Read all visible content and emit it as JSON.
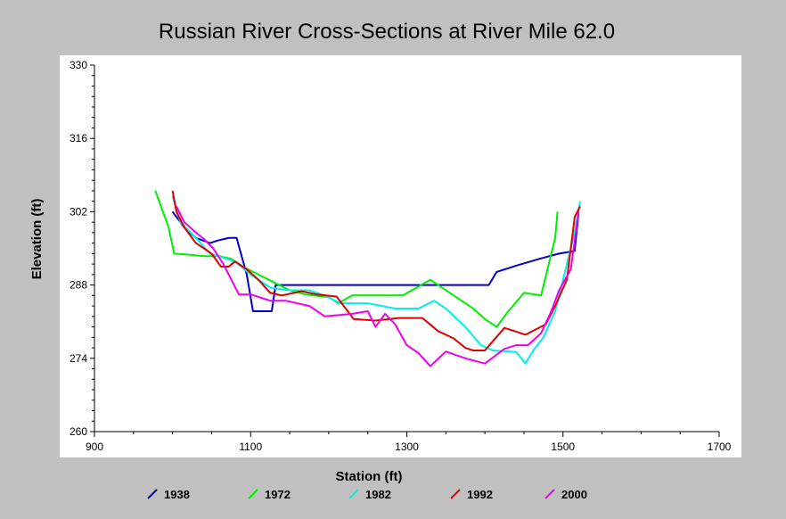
{
  "chart_data": {
    "type": "line",
    "title": "Russian River Cross-Sections at River Mile 62.0",
    "xlabel": "Station (ft)",
    "ylabel": "Elevation (ft)",
    "xlim": [
      900,
      1700
    ],
    "ylim": [
      260,
      330
    ],
    "x_ticks": [
      900,
      1100,
      1300,
      1500,
      1700
    ],
    "y_ticks": [
      260,
      274,
      288,
      302,
      316,
      330
    ],
    "grid": false,
    "legend_position": "bottom",
    "series": [
      {
        "name": "1938",
        "color": "#0000cc",
        "points": [
          [
            1000,
            302
          ],
          [
            1015,
            299
          ],
          [
            1030,
            297
          ],
          [
            1048,
            296
          ],
          [
            1058,
            296.5
          ],
          [
            1072,
            297
          ],
          [
            1082,
            297
          ],
          [
            1095,
            290
          ],
          [
            1103,
            283
          ],
          [
            1127,
            283
          ],
          [
            1132,
            288
          ],
          [
            1405,
            288
          ],
          [
            1415,
            290.5
          ],
          [
            1440,
            291.7
          ],
          [
            1470,
            293
          ],
          [
            1495,
            294
          ],
          [
            1515,
            294.5
          ],
          [
            1520,
            302
          ]
        ]
      },
      {
        "name": "1972",
        "color": "#00ee00",
        "points": [
          [
            978,
            306
          ],
          [
            995,
            299
          ],
          [
            1002,
            294
          ],
          [
            1020,
            293.8
          ],
          [
            1040,
            293.5
          ],
          [
            1060,
            293.5
          ],
          [
            1075,
            293
          ],
          [
            1090,
            291.5
          ],
          [
            1110,
            290
          ],
          [
            1130,
            288.5
          ],
          [
            1150,
            287
          ],
          [
            1170,
            286.2
          ],
          [
            1200,
            285.7
          ],
          [
            1212,
            284.5
          ],
          [
            1230,
            286
          ],
          [
            1280,
            286
          ],
          [
            1295,
            286
          ],
          [
            1330,
            289
          ],
          [
            1360,
            286
          ],
          [
            1385,
            283.5
          ],
          [
            1400,
            281.5
          ],
          [
            1415,
            280
          ],
          [
            1430,
            283
          ],
          [
            1450,
            286.5
          ],
          [
            1472,
            286
          ],
          [
            1490,
            297
          ],
          [
            1493,
            302
          ]
        ]
      },
      {
        "name": "1982",
        "color": "#00eeee",
        "points": [
          [
            1000,
            305
          ],
          [
            1010,
            300
          ],
          [
            1030,
            297
          ],
          [
            1048,
            294
          ],
          [
            1080,
            292.5
          ],
          [
            1100,
            290
          ],
          [
            1125,
            287.5
          ],
          [
            1148,
            287
          ],
          [
            1175,
            287
          ],
          [
            1195,
            286
          ],
          [
            1215,
            284.5
          ],
          [
            1250,
            284.5
          ],
          [
            1285,
            283.5
          ],
          [
            1315,
            283.5
          ],
          [
            1335,
            285
          ],
          [
            1350,
            283.5
          ],
          [
            1375,
            280
          ],
          [
            1395,
            276.5
          ],
          [
            1410,
            275.5
          ],
          [
            1440,
            275.2
          ],
          [
            1452,
            273
          ],
          [
            1462,
            275.5
          ],
          [
            1475,
            278
          ],
          [
            1490,
            283
          ],
          [
            1500,
            289
          ],
          [
            1515,
            298
          ],
          [
            1522,
            304
          ]
        ]
      },
      {
        "name": "1992",
        "color": "#dd0000",
        "points": [
          [
            1000,
            306
          ],
          [
            1005,
            302
          ],
          [
            1015,
            299
          ],
          [
            1030,
            296
          ],
          [
            1050,
            294
          ],
          [
            1062,
            291.5
          ],
          [
            1072,
            291.5
          ],
          [
            1080,
            292.5
          ],
          [
            1095,
            291
          ],
          [
            1110,
            289
          ],
          [
            1125,
            286.5
          ],
          [
            1140,
            286
          ],
          [
            1165,
            286.8
          ],
          [
            1185,
            286.2
          ],
          [
            1210,
            285.8
          ],
          [
            1232,
            281.5
          ],
          [
            1260,
            281.2
          ],
          [
            1290,
            281.7
          ],
          [
            1320,
            281.7
          ],
          [
            1340,
            279.2
          ],
          [
            1360,
            277.8
          ],
          [
            1375,
            276
          ],
          [
            1385,
            275.5
          ],
          [
            1400,
            275.5
          ],
          [
            1425,
            279.8
          ],
          [
            1442,
            279
          ],
          [
            1452,
            278.5
          ],
          [
            1465,
            279.5
          ],
          [
            1478,
            280.5
          ],
          [
            1490,
            284
          ],
          [
            1505,
            289
          ],
          [
            1515,
            301
          ],
          [
            1522,
            303
          ]
        ]
      },
      {
        "name": "2000",
        "color": "#ee00ee",
        "points": [
          [
            1005,
            303
          ],
          [
            1015,
            300
          ],
          [
            1030,
            298
          ],
          [
            1040,
            296.8
          ],
          [
            1052,
            295
          ],
          [
            1065,
            292
          ],
          [
            1085,
            286.2
          ],
          [
            1100,
            286.2
          ],
          [
            1125,
            285
          ],
          [
            1145,
            285
          ],
          [
            1175,
            284
          ],
          [
            1195,
            282
          ],
          [
            1230,
            282.5
          ],
          [
            1250,
            283
          ],
          [
            1260,
            280
          ],
          [
            1272,
            282.5
          ],
          [
            1285,
            280.5
          ],
          [
            1300,
            276.5
          ],
          [
            1315,
            275
          ],
          [
            1330,
            272.5
          ],
          [
            1350,
            275.3
          ],
          [
            1375,
            274
          ],
          [
            1400,
            273
          ],
          [
            1425,
            275.8
          ],
          [
            1440,
            276.5
          ],
          [
            1455,
            276.5
          ],
          [
            1472,
            278.8
          ],
          [
            1485,
            283
          ],
          [
            1495,
            287
          ],
          [
            1510,
            291
          ],
          [
            1520,
            302
          ]
        ]
      }
    ]
  }
}
